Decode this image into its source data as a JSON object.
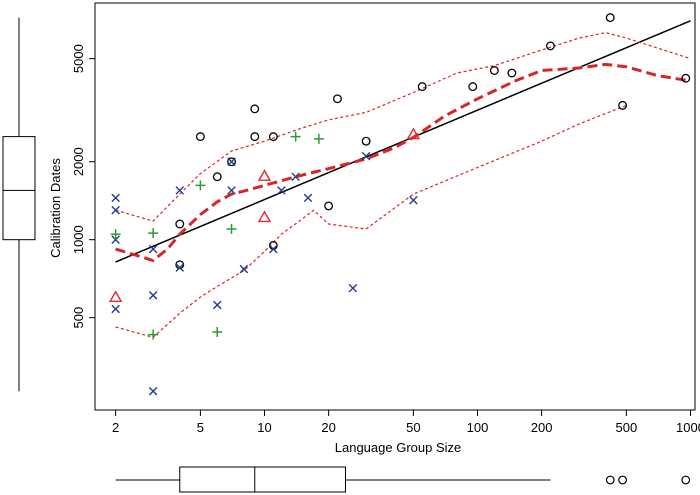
{
  "chart_data": {
    "type": "scatter",
    "title": "",
    "xlabel": "Language Group Size",
    "ylabel": "Calibration Dates",
    "x_scale": "log",
    "y_scale": "log",
    "xlim": [
      1.6,
      1050
    ],
    "ylim": [
      220,
      8200
    ],
    "x_ticks": [
      2,
      5,
      10,
      20,
      50,
      100,
      200,
      500,
      1000
    ],
    "x_tick_labels": [
      "2",
      "5",
      "10",
      "20",
      "50",
      "100",
      "200",
      "500",
      "1000"
    ],
    "y_ticks": [
      500,
      1000,
      2000,
      5000
    ],
    "y_tick_labels": [
      "500",
      "1000",
      "2000",
      "5000"
    ],
    "grid": false,
    "series": [
      {
        "marker": "circle",
        "color": "#000000",
        "points": [
          [
            4,
            800
          ],
          [
            4,
            1150
          ],
          [
            5,
            2500
          ],
          [
            6,
            1750
          ],
          [
            7,
            2000
          ],
          [
            9,
            2500
          ],
          [
            9,
            3200
          ],
          [
            11,
            2500
          ],
          [
            11,
            950
          ],
          [
            20,
            1350
          ],
          [
            22,
            3500
          ],
          [
            30,
            2400
          ],
          [
            55,
            3900
          ],
          [
            95,
            3900
          ],
          [
            120,
            4500
          ],
          [
            145,
            4400
          ],
          [
            220,
            5600
          ],
          [
            420,
            7200
          ],
          [
            480,
            3300
          ],
          [
            950,
            4200
          ]
        ]
      },
      {
        "marker": "x",
        "color": "#1f3a93",
        "points": [
          [
            2,
            1450
          ],
          [
            2,
            1300
          ],
          [
            2,
            1000
          ],
          [
            2,
            540
          ],
          [
            3,
            920
          ],
          [
            3,
            610
          ],
          [
            3,
            260
          ],
          [
            4,
            1550
          ],
          [
            4,
            780
          ],
          [
            6,
            560
          ],
          [
            7,
            2000
          ],
          [
            7,
            1550
          ],
          [
            8,
            770
          ],
          [
            11,
            920
          ],
          [
            12,
            1550
          ],
          [
            14,
            1750
          ],
          [
            16,
            1450
          ],
          [
            26,
            650
          ],
          [
            30,
            2100
          ],
          [
            50,
            1420
          ]
        ]
      },
      {
        "marker": "plus",
        "color": "#2a9d2a",
        "points": [
          [
            2,
            1050
          ],
          [
            3,
            1060
          ],
          [
            3,
            430
          ],
          [
            5,
            1620
          ],
          [
            6,
            440
          ],
          [
            7,
            1100
          ],
          [
            14,
            2500
          ],
          [
            18,
            2450
          ]
        ]
      },
      {
        "marker": "triangle",
        "color": "#e8262a",
        "points": [
          [
            2,
            600
          ],
          [
            10,
            1760
          ],
          [
            10,
            1220
          ],
          [
            50,
            2550
          ]
        ]
      }
    ],
    "lines": [
      {
        "kind": "regression",
        "style": "solid",
        "color": "#000000",
        "points": [
          [
            2,
            820
          ],
          [
            1000,
            7000
          ]
        ]
      },
      {
        "kind": "smooth",
        "style": "thick-dashed",
        "color": "#d62728",
        "points": [
          [
            2,
            920
          ],
          [
            2.5,
            870
          ],
          [
            3,
            830
          ],
          [
            3.5,
            920
          ],
          [
            4,
            1050
          ],
          [
            5,
            1250
          ],
          [
            6,
            1400
          ],
          [
            7,
            1500
          ],
          [
            8,
            1540
          ],
          [
            10,
            1620
          ],
          [
            13,
            1720
          ],
          [
            16,
            1800
          ],
          [
            20,
            1880
          ],
          [
            30,
            2050
          ],
          [
            40,
            2250
          ],
          [
            50,
            2480
          ],
          [
            70,
            3000
          ],
          [
            100,
            3500
          ],
          [
            150,
            4100
          ],
          [
            200,
            4500
          ],
          [
            300,
            4600
          ],
          [
            400,
            4750
          ],
          [
            500,
            4650
          ],
          [
            700,
            4300
          ],
          [
            1000,
            4100
          ]
        ]
      },
      {
        "kind": "upper-band",
        "style": "thin-dashed",
        "color": "#d62728",
        "points": [
          [
            2,
            1300
          ],
          [
            3,
            1180
          ],
          [
            4,
            1500
          ],
          [
            5,
            1800
          ],
          [
            7,
            2200
          ],
          [
            10,
            2400
          ],
          [
            15,
            2700
          ],
          [
            20,
            2900
          ],
          [
            30,
            3100
          ],
          [
            50,
            3700
          ],
          [
            80,
            4400
          ],
          [
            120,
            4700
          ],
          [
            200,
            5400
          ],
          [
            300,
            6000
          ],
          [
            400,
            6300
          ],
          [
            500,
            6000
          ],
          [
            1000,
            5000
          ]
        ]
      },
      {
        "kind": "lower-band",
        "style": "thin-dashed",
        "color": "#d62728",
        "points": [
          [
            2,
            460
          ],
          [
            3,
            420
          ],
          [
            4,
            520
          ],
          [
            5,
            600
          ],
          [
            6,
            660
          ],
          [
            8,
            760
          ],
          [
            10,
            900
          ],
          [
            12,
            1050
          ],
          [
            15,
            1200
          ],
          [
            17,
            1300
          ],
          [
            20,
            1150
          ],
          [
            30,
            1100
          ],
          [
            50,
            1500
          ],
          [
            100,
            1900
          ],
          [
            200,
            2400
          ],
          [
            300,
            2800
          ],
          [
            500,
            3300
          ]
        ]
      }
    ],
    "y_boxplot": {
      "min": 260,
      "q1": 1000,
      "median": 1550,
      "q3": 2500,
      "max": 7200
    },
    "x_boxplot": {
      "min": 2,
      "q1": 4,
      "median": 9,
      "q3": 24,
      "max": 220,
      "outliers": [
        420,
        480,
        950
      ]
    }
  }
}
